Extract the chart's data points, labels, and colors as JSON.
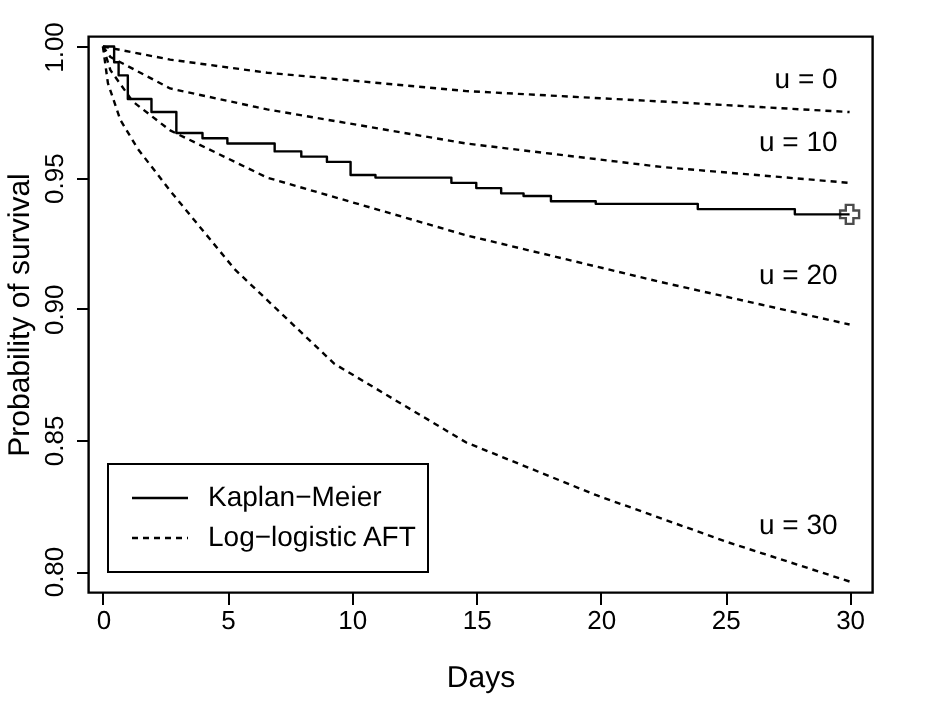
{
  "chart_data": {
    "type": "line",
    "xlabel": "Days",
    "ylabel": "Probability of survival",
    "xlim": [
      -0.6,
      30.9
    ],
    "ylim": [
      0.792,
      1.004
    ],
    "xticks": [
      0,
      5,
      10,
      15,
      20,
      25,
      30
    ],
    "yticks": [
      {
        "value": 0.8,
        "label": "0.80"
      },
      {
        "value": 0.85,
        "label": "0.85"
      },
      {
        "value": 0.9,
        "label": "0.90"
      },
      {
        "value": 0.95,
        "label": "0.95"
      },
      {
        "value": 1.0,
        "label": "1.00"
      }
    ],
    "grid": false,
    "legend": "bottom left",
    "series": [
      {
        "name": "Kaplan−Meier",
        "type": "step",
        "color": "#000000",
        "line_style": "solid",
        "x": [
          0,
          0.45,
          0.63,
          1.0,
          1.95,
          2.95,
          4.0,
          5.0,
          6.9,
          7.97,
          9.0,
          9.95,
          10.95,
          14.0,
          15.0,
          16.0,
          16.9,
          18.0,
          19.8,
          23.9,
          27.8,
          30
        ],
        "values": [
          1.0,
          0.994,
          0.989,
          0.98,
          0.975,
          0.967,
          0.965,
          0.963,
          0.96,
          0.958,
          0.956,
          0.951,
          0.95,
          0.948,
          0.946,
          0.944,
          0.943,
          0.941,
          0.94,
          0.938,
          0.936,
          0.936
        ]
      },
      {
        "type": "scatter",
        "marker": "cross",
        "color": "#000000",
        "x": [
          30
        ],
        "values": [
          0.936
        ]
      },
      {
        "name": "Log−logistic AFT",
        "color": "#000000",
        "line_style": "dashed",
        "x": [
          0,
          2.7,
          6.6,
          14.6,
          22.5,
          30
        ],
        "values": [
          1.0,
          0.995,
          0.99,
          0.983,
          0.979,
          0.975
        ]
      },
      {
        "color": "#000000",
        "line_style": "dashed",
        "x": [
          0,
          0.3,
          2.7,
          6.6,
          14.6,
          22.5,
          30
        ],
        "values": [
          1.0,
          0.996,
          0.984,
          0.976,
          0.963,
          0.954,
          0.948
        ]
      },
      {
        "color": "#000000",
        "line_style": "dashed",
        "x": [
          0,
          0.3,
          1.2,
          2.7,
          6.6,
          14.6,
          22.5,
          30
        ],
        "values": [
          1.0,
          0.991,
          0.979,
          0.968,
          0.95,
          0.928,
          0.91,
          0.894
        ]
      },
      {
        "color": "#000000",
        "line_style": "dashed",
        "x": [
          0,
          0.2,
          0.7,
          1.4,
          2.7,
          5.3,
          9.3,
          14.6,
          19.8,
          25.1,
          30
        ],
        "values": [
          1.0,
          0.986,
          0.972,
          0.961,
          0.945,
          0.915,
          0.879,
          0.849,
          0.829,
          0.811,
          0.796
        ]
      }
    ],
    "annotations": [
      "u = 0",
      "u = 10",
      "u = 20",
      "u = 30"
    ]
  }
}
